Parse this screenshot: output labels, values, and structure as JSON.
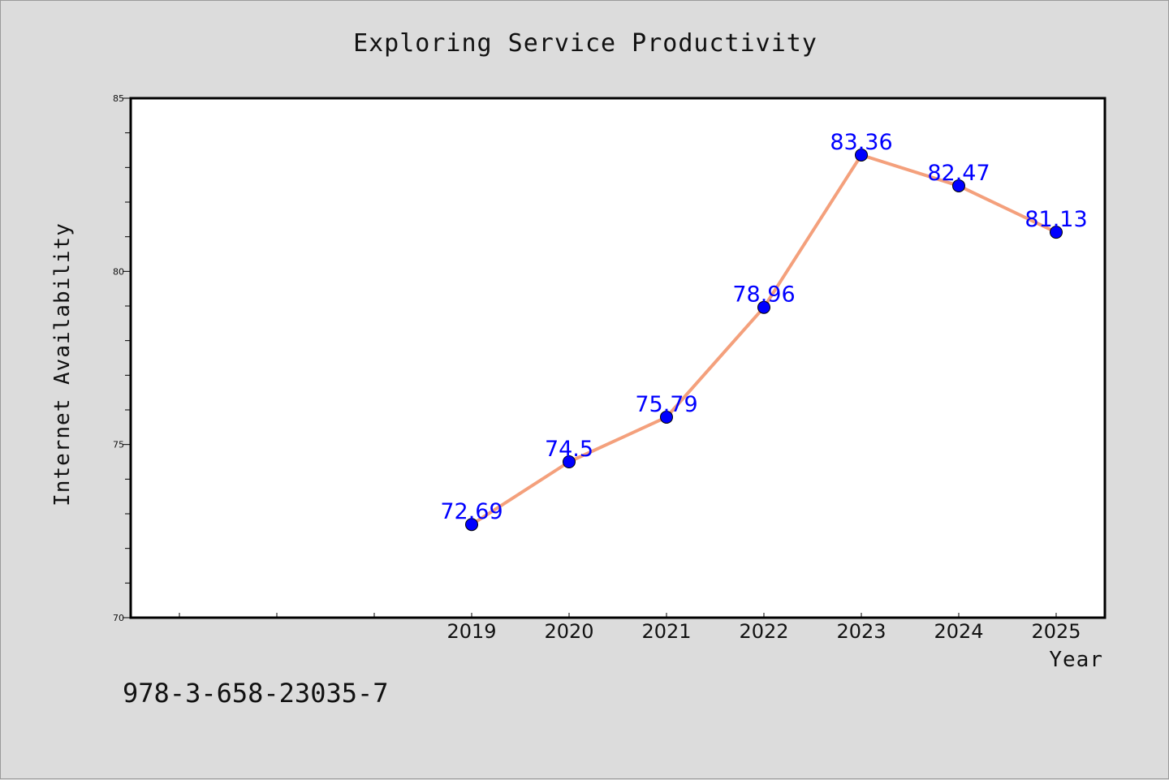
{
  "chart_data": {
    "type": "line",
    "title": "Exploring Service Productivity",
    "xlabel": "Year",
    "ylabel": "Internet Availability",
    "categories": [
      "2019",
      "2020",
      "2021",
      "2022",
      "2023",
      "2024",
      "2025"
    ],
    "x_axis_extra_leading_slots": 3,
    "series": [
      {
        "values": [
          72.69,
          74.5,
          75.79,
          78.96,
          83.36,
          82.47,
          81.13
        ],
        "data_labels": [
          "72.69",
          "74.5",
          "75.79",
          "78.96",
          "83.36",
          "82.47",
          "81.13"
        ],
        "line_color": "#f4a07c",
        "marker_color": "#0000ff"
      }
    ],
    "ylim": [
      70,
      85
    ],
    "y_major_ticks": [
      70,
      75,
      80,
      85
    ],
    "y_minor_step": 1,
    "grid": false,
    "legend": "none",
    "data_label_color": "#0000ff"
  },
  "footer": {
    "isbn": "978-3-658-23035-7"
  },
  "colors": {
    "background": "#dcdcdc",
    "plot_background": "#ffffff",
    "axis": "#000000"
  }
}
